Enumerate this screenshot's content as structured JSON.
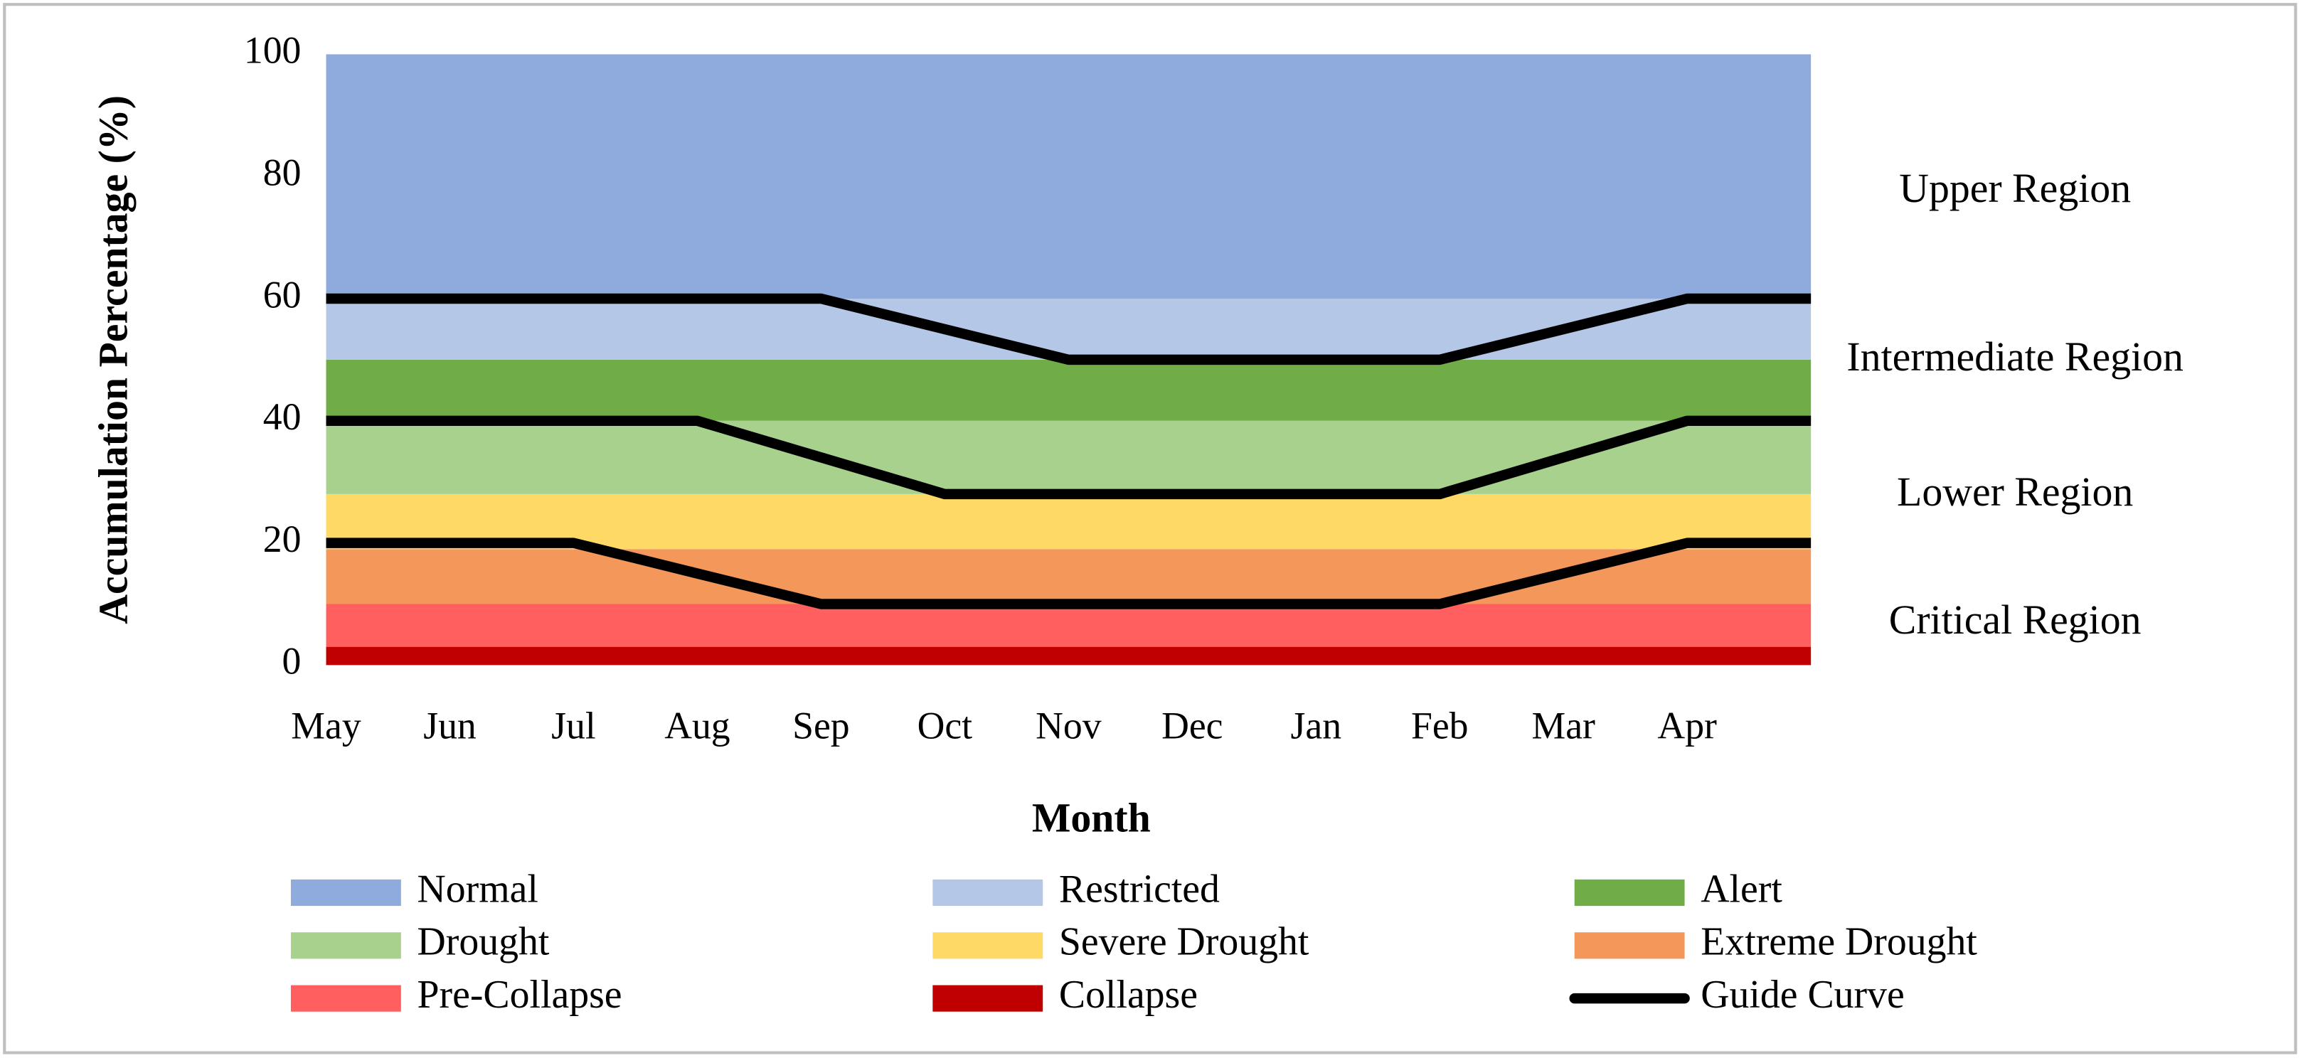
{
  "chart_data": {
    "type": "stacked_area",
    "x_label": "Month",
    "y_label": "Accumulation Percentage (%)",
    "categories": [
      "May",
      "Jun",
      "Jul",
      "Aug",
      "Sep",
      "Oct",
      "Nov",
      "Dec",
      "Jan",
      "Feb",
      "Mar",
      "Apr",
      null
    ],
    "ylim": [
      0,
      100
    ],
    "yticks": [
      0,
      20,
      40,
      60,
      80,
      100
    ],
    "grid": false,
    "series": [
      {
        "name": "Normal",
        "color": "#8faadc",
        "values": [
          40,
          40,
          40,
          40,
          40,
          40,
          40,
          40,
          40,
          40,
          40,
          40,
          40
        ]
      },
      {
        "name": "Restricted",
        "color": "#b4c7e7",
        "values": [
          10,
          10,
          10,
          10,
          10,
          10,
          10,
          10,
          10,
          10,
          10,
          10,
          10
        ]
      },
      {
        "name": "Alert",
        "color": "#70ad47",
        "values": [
          10,
          10,
          10,
          10,
          10,
          10,
          10,
          10,
          10,
          10,
          10,
          10,
          10
        ]
      },
      {
        "name": "Drought",
        "color": "#a9d18e",
        "values": [
          12,
          12,
          12,
          12,
          12,
          12,
          12,
          12,
          12,
          12,
          12,
          12,
          12
        ]
      },
      {
        "name": "Severe Drought",
        "color": "#ffd966",
        "values": [
          9,
          9,
          9,
          9,
          9,
          9,
          9,
          9,
          9,
          9,
          9,
          9,
          9
        ]
      },
      {
        "name": "Extreme Drought",
        "color": "#f4975a",
        "values": [
          9,
          9,
          9,
          9,
          9,
          9,
          9,
          9,
          9,
          9,
          9,
          9,
          9
        ]
      },
      {
        "name": "Pre-Collapse",
        "color": "#ff5f5f",
        "values": [
          7,
          7,
          7,
          7,
          7,
          7,
          7,
          7,
          7,
          7,
          7,
          7,
          7
        ]
      },
      {
        "name": "Collapse",
        "color": "#c00000",
        "values": [
          3,
          3,
          3,
          3,
          3,
          3,
          3,
          3,
          3,
          3,
          3,
          3,
          3
        ]
      }
    ],
    "guide_curve": {
      "name": "Guide Curve",
      "color": "#000000",
      "lines": [
        [
          60,
          60,
          60,
          60,
          60,
          55,
          50,
          50,
          50,
          50,
          55,
          60,
          60
        ],
        [
          40,
          40,
          40,
          40,
          34,
          28,
          28,
          28,
          28,
          28,
          34,
          40,
          40
        ],
        [
          20,
          20,
          20,
          15,
          10,
          10,
          10,
          10,
          10,
          10,
          15,
          20,
          20
        ]
      ]
    },
    "annotations": [
      "Upper Region",
      "Intermediate Region",
      "Lower Region",
      "Critical Region"
    ]
  }
}
